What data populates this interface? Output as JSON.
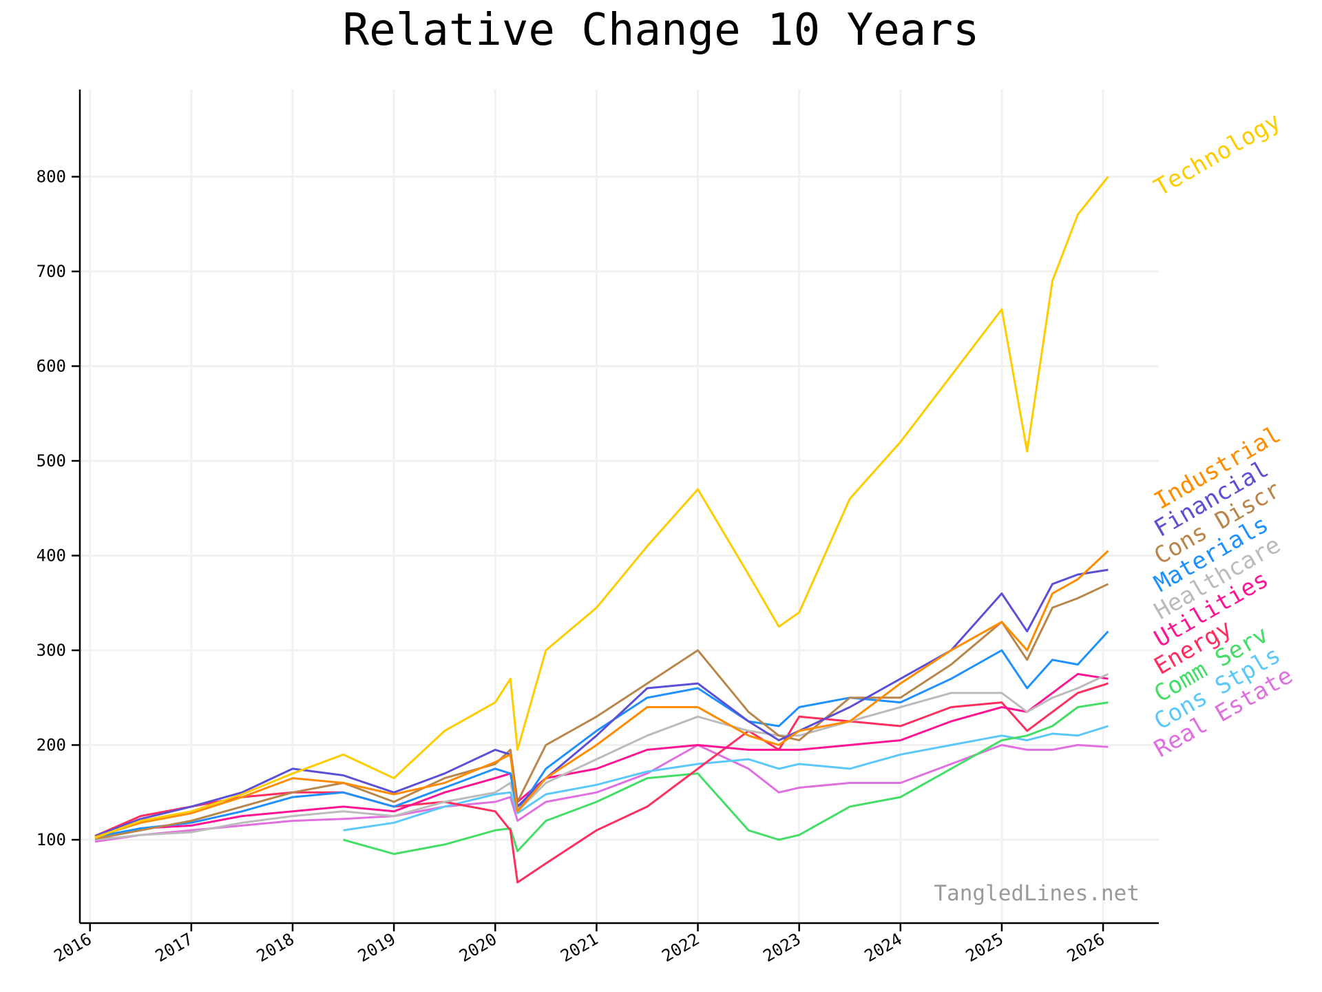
{
  "chart_data": {
    "type": "line",
    "title": "Relative Change 10 Years",
    "xlabel": "",
    "ylabel": "",
    "watermark": "TangledLines.net",
    "x_ticks": [
      "2016",
      "2017",
      "2018",
      "2019",
      "2020",
      "2021",
      "2022",
      "2023",
      "2024",
      "2025",
      "2026"
    ],
    "y_ticks": [
      "100",
      "200",
      "300",
      "400",
      "500",
      "600",
      "700",
      "800"
    ],
    "xlim": [
      2015.9,
      2026.55
    ],
    "ylim": [
      12,
      892
    ],
    "grid": true,
    "legend": "labels at right end of lines",
    "x": [
      2016.05,
      2016.5,
      2017.0,
      2017.5,
      2018.0,
      2018.5,
      2019.0,
      2019.5,
      2020.0,
      2020.15,
      2020.22,
      2020.5,
      2021.0,
      2021.5,
      2022.0,
      2022.5,
      2022.8,
      2023.0,
      2023.5,
      2024.0,
      2024.5,
      2025.0,
      2025.25,
      2025.5,
      2025.75,
      2026.05
    ],
    "series": [
      {
        "name": "Technology",
        "color": "#ffcc00",
        "values": [
          102,
          120,
          130,
          148,
          170,
          190,
          165,
          215,
          245,
          270,
          195,
          300,
          345,
          410,
          470,
          380,
          325,
          340,
          460,
          520,
          590,
          660,
          510,
          690,
          760,
          800
        ]
      },
      {
        "name": "Industrial",
        "color": "#ff8c00",
        "values": [
          103,
          118,
          128,
          145,
          165,
          160,
          148,
          160,
          182,
          190,
          130,
          165,
          200,
          240,
          240,
          210,
          200,
          215,
          225,
          265,
          300,
          330,
          300,
          360,
          375,
          405
        ]
      },
      {
        "name": "Financial",
        "color": "#5b4fd6",
        "values": [
          104,
          122,
          135,
          150,
          175,
          168,
          150,
          170,
          195,
          190,
          135,
          165,
          210,
          260,
          265,
          225,
          205,
          215,
          240,
          270,
          300,
          360,
          320,
          370,
          380,
          385
        ]
      },
      {
        "name": "Cons Discr",
        "color": "#b8864b",
        "values": [
          101,
          110,
          120,
          135,
          150,
          160,
          140,
          165,
          180,
          195,
          140,
          200,
          230,
          265,
          300,
          235,
          210,
          205,
          250,
          250,
          285,
          330,
          290,
          345,
          355,
          370
        ]
      },
      {
        "name": "Materials",
        "color": "#1e90ff",
        "values": [
          103,
          112,
          118,
          130,
          145,
          150,
          135,
          155,
          175,
          170,
          130,
          175,
          215,
          250,
          260,
          225,
          220,
          240,
          250,
          245,
          270,
          300,
          260,
          290,
          285,
          320
        ]
      },
      {
        "name": "Healthcare",
        "color": "#bbbbbb",
        "values": [
          100,
          105,
          108,
          118,
          125,
          130,
          125,
          140,
          150,
          160,
          130,
          160,
          185,
          210,
          230,
          215,
          210,
          210,
          225,
          240,
          255,
          255,
          235,
          250,
          260,
          275
        ]
      },
      {
        "name": "Utilities",
        "color": "#ff1493",
        "values": [
          100,
          112,
          115,
          125,
          130,
          135,
          130,
          150,
          165,
          170,
          140,
          165,
          175,
          195,
          200,
          195,
          195,
          195,
          200,
          205,
          225,
          240,
          235,
          255,
          275,
          270
        ]
      },
      {
        "name": "Energy",
        "color": "#ff2e5f",
        "values": [
          104,
          125,
          135,
          145,
          150,
          150,
          135,
          140,
          130,
          110,
          55,
          75,
          110,
          135,
          175,
          215,
          195,
          230,
          225,
          220,
          240,
          245,
          215,
          235,
          255,
          265
        ]
      },
      {
        "name": "Comm Serv",
        "color": "#44dd66",
        "values": [
          null,
          null,
          null,
          null,
          null,
          100,
          85,
          95,
          110,
          112,
          88,
          120,
          140,
          165,
          170,
          110,
          100,
          105,
          135,
          145,
          175,
          205,
          210,
          220,
          240,
          245
        ]
      },
      {
        "name": "Cons Stpls",
        "color": "#5bc8fa",
        "values": [
          null,
          null,
          null,
          null,
          null,
          110,
          118,
          135,
          148,
          150,
          128,
          148,
          158,
          172,
          180,
          185,
          175,
          180,
          175,
          190,
          200,
          210,
          205,
          212,
          210,
          220
        ]
      },
      {
        "name": "Real Estate",
        "color": "#e070e0",
        "values": [
          98,
          105,
          110,
          115,
          120,
          122,
          125,
          135,
          140,
          145,
          120,
          140,
          150,
          170,
          200,
          175,
          150,
          155,
          160,
          160,
          180,
          200,
          195,
          195,
          200,
          198
        ]
      }
    ]
  }
}
